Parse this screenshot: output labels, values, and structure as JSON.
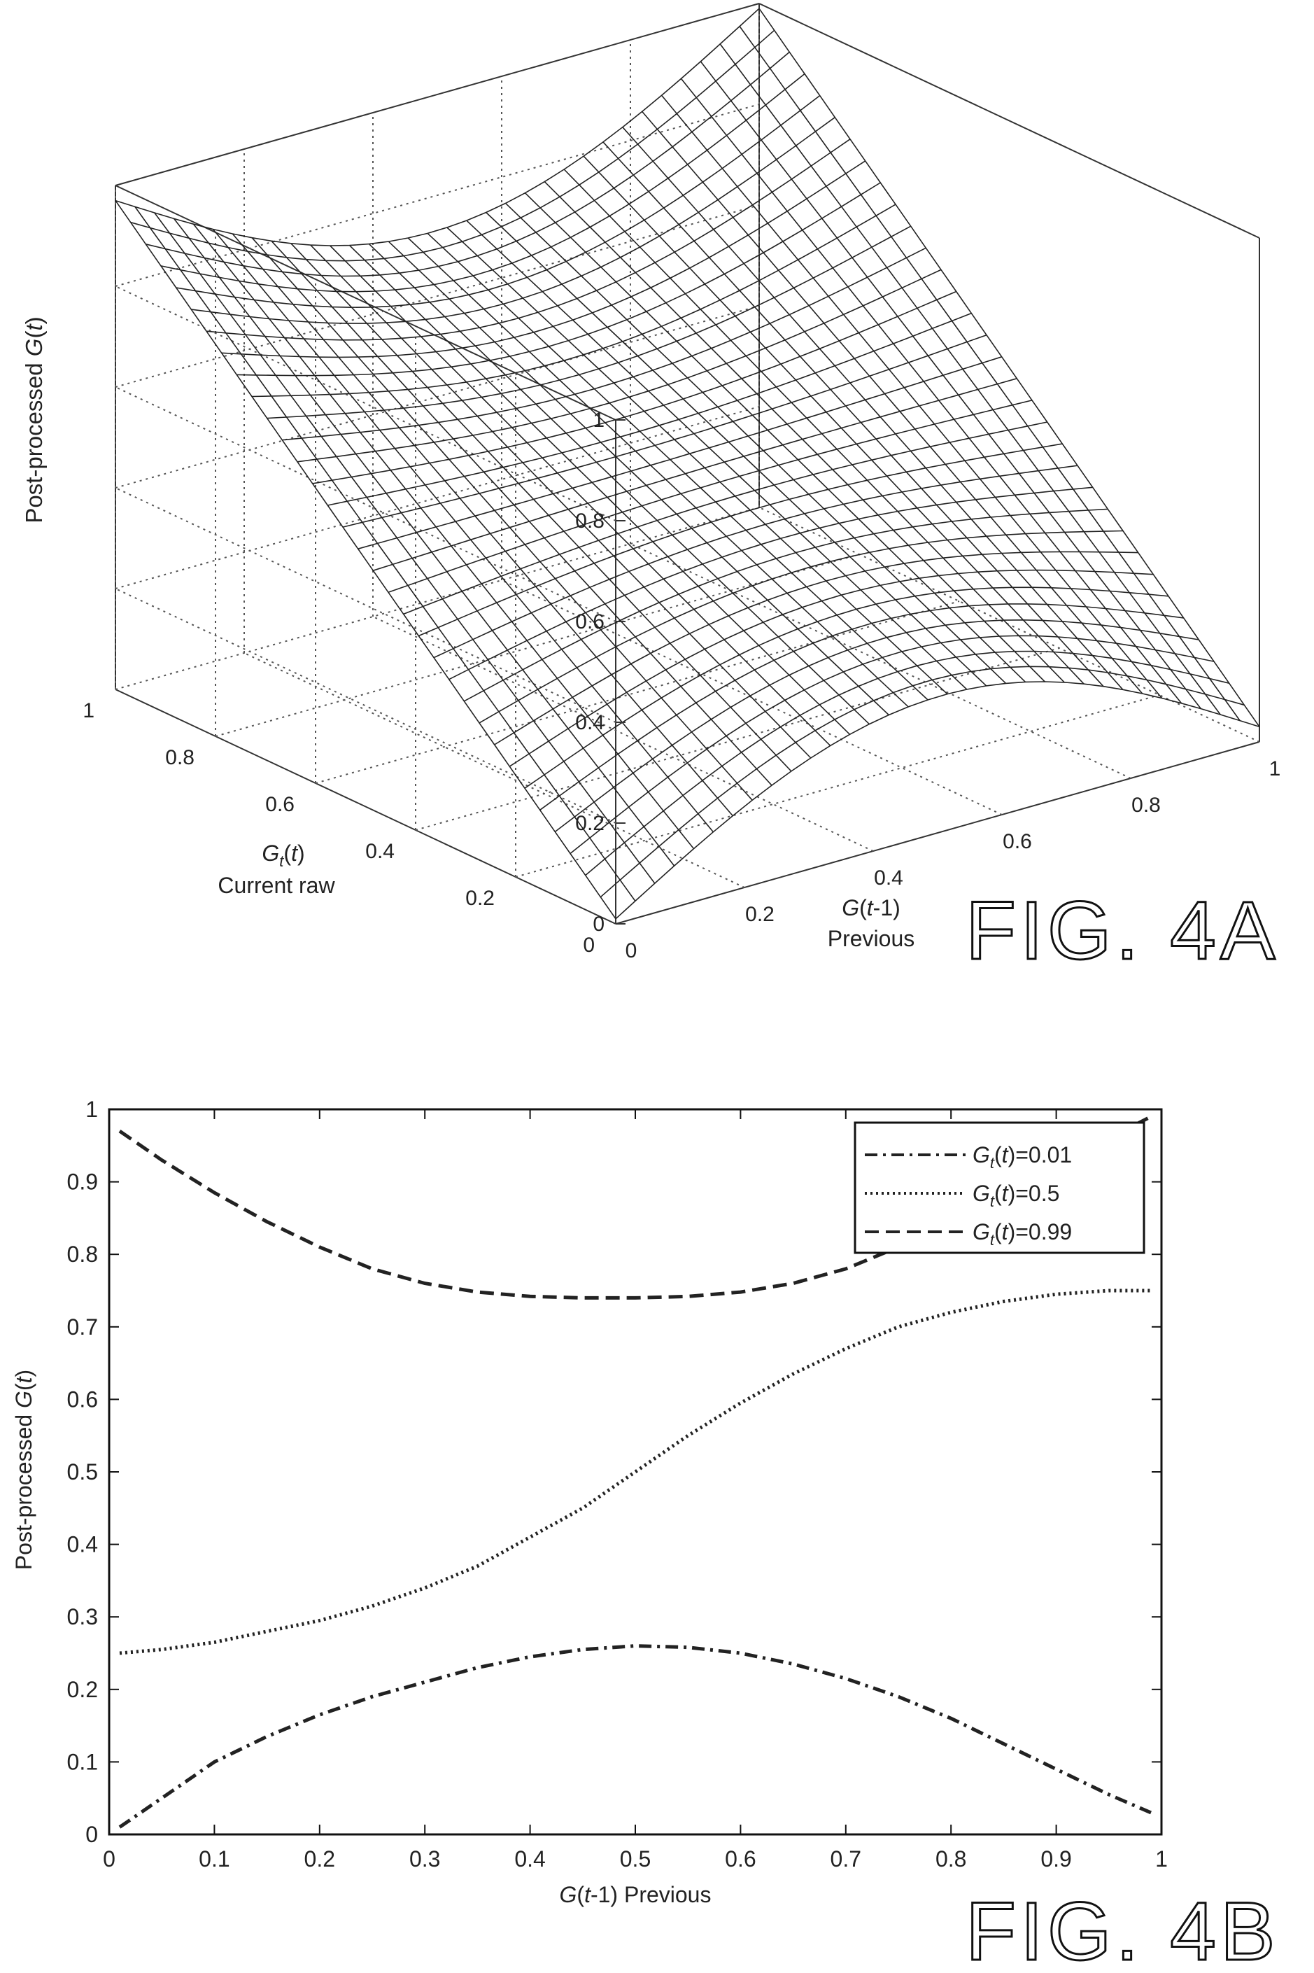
{
  "chart_data": [
    {
      "type": "surface",
      "figure_label": "FIG. 4A",
      "zlabel": "Post-processed G(t)",
      "xaxis": {
        "label_top": "G(t-1)",
        "label_bottom": "Previous",
        "ticks": [
          "0",
          "0.2",
          "0.4",
          "0.6",
          "0.8",
          "1"
        ]
      },
      "yaxis": {
        "label_top": "Gt(t)",
        "label_bottom": "Current raw",
        "ticks": [
          "0",
          "0.2",
          "0.4",
          "0.6",
          "0.8",
          "1"
        ]
      },
      "zaxis": {
        "ticks": [
          "0",
          "0.2",
          "0.4",
          "0.6",
          "0.8",
          "1"
        ]
      },
      "xlim": [
        0,
        1
      ],
      "ylim": [
        0,
        1
      ],
      "zlim": [
        0,
        1
      ],
      "grid": true,
      "mesh_size": 33,
      "corner_values": {
        "x0_y0": 0.01,
        "x1_y0": 0.03,
        "x0_y1": 0.97,
        "x1_y1": 0.99
      },
      "max_value": 0.92
    },
    {
      "type": "line",
      "figure_label": "FIG. 4B",
      "xlabel": "G(t-1) Previous",
      "ylabel": "Post-processed G(t)",
      "xlim": [
        0,
        1
      ],
      "ylim": [
        0,
        1
      ],
      "xticks": [
        "0",
        "0.1",
        "0.2",
        "0.3",
        "0.4",
        "0.5",
        "0.6",
        "0.7",
        "0.8",
        "0.9",
        "1"
      ],
      "yticks": [
        "0",
        "0.1",
        "0.2",
        "0.3",
        "0.4",
        "0.5",
        "0.6",
        "0.7",
        "0.8",
        "0.9",
        "1"
      ],
      "legend_position": "top-right",
      "x": [
        0.01,
        0.05,
        0.1,
        0.15,
        0.2,
        0.25,
        0.3,
        0.35,
        0.4,
        0.45,
        0.5,
        0.55,
        0.6,
        0.65,
        0.7,
        0.75,
        0.8,
        0.85,
        0.9,
        0.95,
        0.99
      ],
      "series": [
        {
          "name": "Gt(t)=0.01",
          "style": "dash-dot",
          "values": [
            0.01,
            0.05,
            0.1,
            0.135,
            0.165,
            0.19,
            0.21,
            0.23,
            0.245,
            0.255,
            0.26,
            0.258,
            0.25,
            0.235,
            0.215,
            0.19,
            0.16,
            0.125,
            0.09,
            0.055,
            0.03
          ]
        },
        {
          "name": "Gt(t)=0.5",
          "style": "dotted",
          "values": [
            0.25,
            0.255,
            0.265,
            0.28,
            0.295,
            0.315,
            0.34,
            0.37,
            0.41,
            0.45,
            0.5,
            0.55,
            0.595,
            0.635,
            0.67,
            0.7,
            0.72,
            0.735,
            0.745,
            0.75,
            0.75
          ]
        },
        {
          "name": "Gt(t)=0.99",
          "style": "dashed",
          "values": [
            0.97,
            0.93,
            0.885,
            0.845,
            0.81,
            0.78,
            0.76,
            0.748,
            0.742,
            0.74,
            0.74,
            0.742,
            0.748,
            0.76,
            0.78,
            0.81,
            0.845,
            0.885,
            0.925,
            0.96,
            0.99
          ]
        }
      ]
    }
  ]
}
